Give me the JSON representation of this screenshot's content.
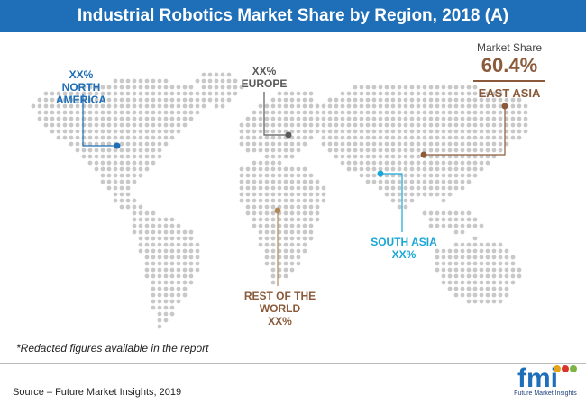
{
  "title": "Industrial Robotics Market Share by Region, 2018 (A)",
  "regions": {
    "north_america": {
      "value": "XX%",
      "name": "NORTH AMERICA",
      "color": "#1e6fb8"
    },
    "europe": {
      "value": "XX%",
      "name": "EUROPE",
      "color": "#5a5a5a"
    },
    "east_asia": {
      "caption": "Market Share",
      "value": "60.4%",
      "name": "EAST ASIA",
      "color": "#8a5a3a"
    },
    "south_asia": {
      "name": "SOUTH ASIA",
      "value": "XX%",
      "color": "#1aa6d6"
    },
    "rest_of_world": {
      "name": "REST OF THE WORLD",
      "value": "XX%",
      "color": "#b08a5a"
    }
  },
  "note": "*Redacted figures available in the report",
  "source": "Source – Future Market Insights, 2019",
  "logo": {
    "text": "fmi",
    "subtitle": "Future Market Insights"
  },
  "colors": {
    "title_bar": "#1e6fb8",
    "map_dots": "#c8c8c8"
  }
}
